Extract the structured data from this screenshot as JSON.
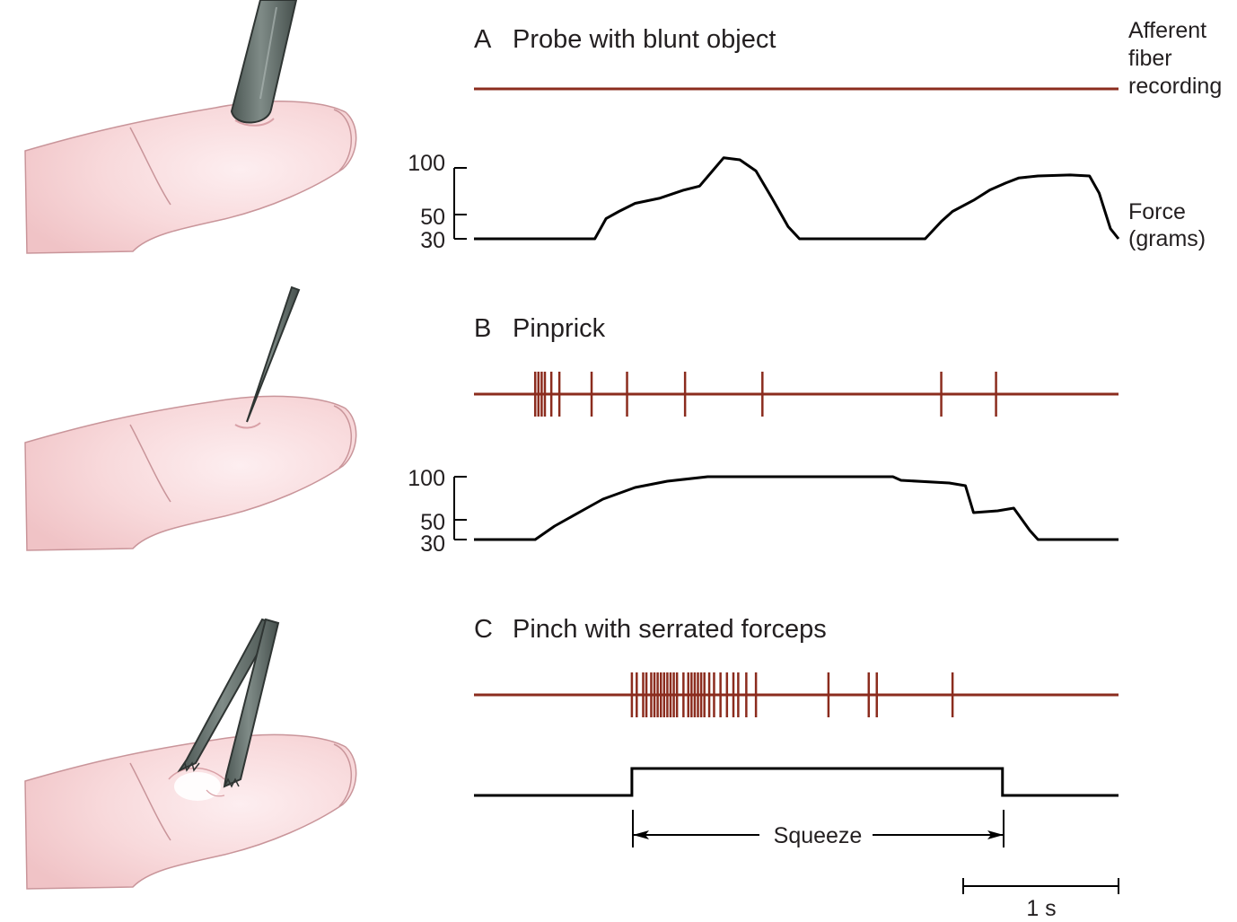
{
  "colors": {
    "spike_trace": "#8b2c1e",
    "force_trace": "#000000",
    "skin": "#f6d2d4",
    "skin_outline": "#c9959a",
    "instrument": "#5f6b67"
  },
  "side_labels": {
    "afferent": [
      "Afferent",
      "fiber",
      "recording"
    ],
    "force": [
      "Force",
      "(grams)"
    ]
  },
  "panels": [
    {
      "letter": "A",
      "title": "Probe with blunt object",
      "stimulus_icon": "blunt-probe-on-finger",
      "spike_times_s": [],
      "force_axis": {
        "ticks": [
          "100",
          "50",
          "30"
        ]
      },
      "force_trace": {
        "t_s": [
          0.0,
          0.75,
          0.82,
          0.9,
          1.0,
          1.15,
          1.3,
          1.4,
          1.48,
          1.55,
          1.65,
          1.75,
          1.85,
          1.95,
          2.02,
          2.08,
          2.2,
          2.8,
          2.9,
          2.97,
          3.1,
          3.2,
          3.3,
          3.38,
          3.5,
          3.7,
          3.82,
          3.88,
          3.95,
          4.0
        ],
        "force_g": [
          30,
          30,
          50,
          57,
          65,
          70,
          78,
          82,
          97,
          110,
          108,
          97,
          70,
          42,
          30,
          30,
          30,
          30,
          47,
          57,
          68,
          78,
          85,
          90,
          92,
          93,
          92,
          75,
          40,
          30
        ]
      }
    },
    {
      "letter": "B",
      "title": "Pinprick",
      "stimulus_icon": "pin-on-finger",
      "spike_times_s": [
        0.38,
        0.4,
        0.42,
        0.44,
        0.48,
        0.53,
        0.73,
        0.95,
        1.31,
        1.79,
        2.9,
        3.24
      ],
      "force_axis": {
        "ticks": [
          "100",
          "50",
          "30"
        ]
      },
      "force_trace": {
        "t_s": [
          0.0,
          0.38,
          0.5,
          0.7,
          0.8,
          1.0,
          1.2,
          1.45,
          1.8,
          2.6,
          2.65,
          2.95,
          3.05,
          3.1,
          3.25,
          3.35,
          3.45,
          3.5,
          4.0
        ],
        "force_g": [
          30,
          30,
          45,
          65,
          75,
          88,
          95,
          100,
          100,
          100,
          96,
          93,
          90,
          60,
          62,
          65,
          40,
          30,
          30
        ]
      }
    },
    {
      "letter": "C",
      "title": "Pinch with serrated forceps",
      "stimulus_icon": "serrated-forceps-on-finger",
      "spike_times_s": [
        0.98,
        1.01,
        1.05,
        1.07,
        1.1,
        1.12,
        1.14,
        1.16,
        1.18,
        1.2,
        1.22,
        1.24,
        1.26,
        1.3,
        1.33,
        1.35,
        1.37,
        1.39,
        1.41,
        1.43,
        1.46,
        1.49,
        1.53,
        1.57,
        1.61,
        1.64,
        1.69,
        1.75,
        2.2,
        2.45,
        2.5,
        2.97
      ],
      "force_trace": {
        "type": "step",
        "onset_s": 0.98,
        "offset_s": 3.28
      },
      "annotation": "Squeeze"
    }
  ],
  "scale_bar": {
    "label": "1 s",
    "duration_s": 1
  }
}
